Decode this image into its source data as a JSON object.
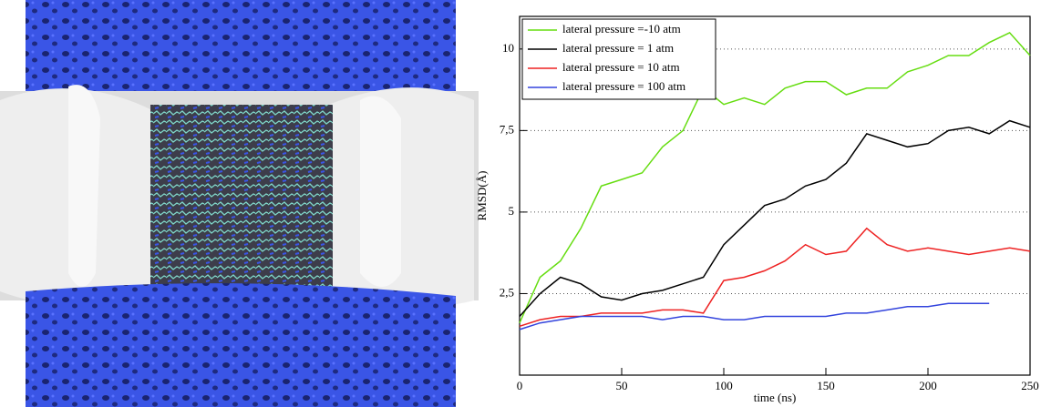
{
  "chart_data": {
    "type": "line",
    "xlabel": "time (ns)",
    "ylabel": "RMSD(Å)",
    "x": [
      0,
      10,
      20,
      30,
      40,
      50,
      60,
      70,
      80,
      90,
      100,
      110,
      120,
      130,
      140,
      150,
      160,
      170,
      180,
      190,
      200,
      210,
      220,
      230,
      240,
      250
    ],
    "series": [
      {
        "name": "lateral pressure =-10 atm",
        "color": "#66dd11",
        "values": [
          1.6,
          3.0,
          3.5,
          4.5,
          5.8,
          6.0,
          6.2,
          7.0,
          7.5,
          8.8,
          8.3,
          8.5,
          8.3,
          8.8,
          9.0,
          9.0,
          8.6,
          8.8,
          8.8,
          9.3,
          9.5,
          9.8,
          9.8,
          10.2,
          10.5,
          9.8
        ]
      },
      {
        "name": "lateral pressure = 1  atm",
        "color": "#000000",
        "values": [
          1.8,
          2.5,
          3.0,
          2.8,
          2.4,
          2.3,
          2.5,
          2.6,
          2.8,
          3.0,
          4.0,
          4.6,
          5.2,
          5.4,
          5.8,
          6.0,
          6.5,
          7.4,
          7.2,
          7.0,
          7.1,
          7.5,
          7.6,
          7.4,
          7.8,
          7.6
        ]
      },
      {
        "name": "lateral pressure = 10 atm",
        "color": "#ee2222",
        "values": [
          1.5,
          1.7,
          1.8,
          1.8,
          1.9,
          1.9,
          1.9,
          2.0,
          2.0,
          1.9,
          2.9,
          3.0,
          3.2,
          3.5,
          4.0,
          3.7,
          3.8,
          4.5,
          4.0,
          3.8,
          3.9,
          3.8,
          3.7,
          3.8,
          3.9,
          3.8
        ]
      },
      {
        "name": "lateral pressure = 100 atm",
        "color": "#3344dd",
        "values": [
          1.4,
          1.6,
          1.7,
          1.8,
          1.8,
          1.8,
          1.8,
          1.7,
          1.8,
          1.8,
          1.7,
          1.7,
          1.8,
          1.8,
          1.8,
          1.8,
          1.9,
          1.9,
          2.0,
          2.1,
          2.1,
          2.2,
          2.2,
          2.2,
          null,
          null
        ]
      }
    ],
    "xlim": [
      0,
      250
    ],
    "xticks": [
      0,
      50,
      100,
      150,
      200,
      250
    ],
    "ylim": [
      0,
      11
    ],
    "yticks": [
      {
        "value": 2.5,
        "label": "2,5"
      },
      5,
      {
        "value": 7.5,
        "label": "7,5"
      },
      10
    ],
    "grid": true,
    "legend": "upper left"
  }
}
